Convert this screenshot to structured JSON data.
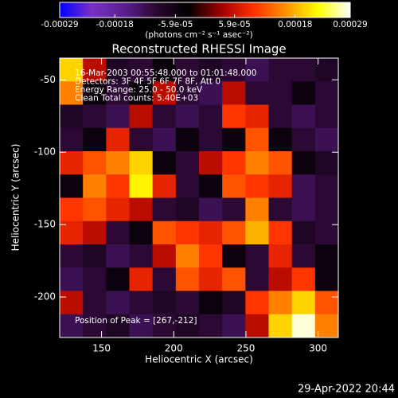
{
  "chart_data": {
    "type": "heatmap",
    "title": "Reconstructed RHESSI Image",
    "x_label": "Heliocentric X (arcsec)",
    "y_label": "Heliocentric Y (arcsec)",
    "xlim": [
      121,
      314
    ],
    "ylim": [
      -228,
      -35
    ],
    "xticks": [
      150,
      200,
      250,
      300
    ],
    "yticks": [
      -50,
      -100,
      -150,
      -200
    ],
    "annotations": [
      "16-Mar-2003 00:55:48.000 to 01:01:48.000",
      "Detectors: 3F 4F 5F 6F 7F 8F, Att 0",
      "Energy Range: 25.0 - 50.0 keV",
      "Clean     Total counts: 5.40E+03"
    ],
    "peak_label": "Position of Peak = [267,-212]",
    "timestamp": "29-Apr-2022 20:44",
    "colorbar": {
      "label": "(photons cm⁻² s⁻¹ asec⁻²)",
      "lim": [
        -0.00029,
        0.00029
      ],
      "ticks": [
        -0.00029,
        -0.00018,
        {
          "value": -5.9e-05,
          "label": "-5.9e-05"
        },
        {
          "value": 5.9e-05,
          "label": "5.9e-05"
        },
        0.00018,
        0.00029
      ],
      "colormap": [
        "#0000ff",
        "#7a30c8",
        "#5a2090",
        "#2a0830",
        "#000000",
        "#a00000",
        "#ff3000",
        "#ff9000",
        "#ffff00",
        "#ffffff"
      ]
    },
    "values": [
      [
        0.0002,
        5e-05,
        -8e-05,
        -0.0001,
        -5e-05,
        -0.0001,
        -8e-05,
        -0.0001,
        -0.00012,
        -0.0001,
        -0.0001,
        -8e-05
      ],
      [
        0.00015,
        -5e-05,
        -0.0001,
        -5e-05,
        5e-05,
        -0.0001,
        -0.00012,
        5e-05,
        -0.0001,
        -0.0001,
        -5e-05,
        -0.0001
      ],
      [
        -8e-05,
        -0.0001,
        -0.00012,
        5e-05,
        -0.0001,
        -0.00012,
        -0.0001,
        0.0001,
        8e-05,
        -0.0001,
        -0.00012,
        -0.0001
      ],
      [
        -0.0001,
        -5e-05,
        8e-05,
        -0.0001,
        -0.00012,
        -5e-05,
        -0.0001,
        -5e-05,
        0.00012,
        -5e-05,
        -0.0001,
        -0.00012
      ],
      [
        8e-05,
        0.00012,
        0.00015,
        0.0002,
        -5e-05,
        -0.0001,
        5e-05,
        0.0001,
        0.00015,
        0.00012,
        -5e-05,
        -8e-05
      ],
      [
        -5e-05,
        0.00015,
        0.0001,
        0.00022,
        8e-05,
        -0.0001,
        -5e-05,
        0.00012,
        0.0001,
        8e-05,
        -0.00012,
        -0.0001
      ],
      [
        0.0001,
        0.00012,
        8e-05,
        5e-05,
        -0.0001,
        -8e-05,
        -0.00012,
        -0.0001,
        0.00015,
        -0.0001,
        -0.00012,
        -0.0001
      ],
      [
        8e-05,
        5e-05,
        -0.0001,
        -5e-05,
        0.00012,
        0.0001,
        8e-05,
        0.00012,
        0.00018,
        0.0001,
        -8e-05,
        -0.0001
      ],
      [
        -0.0001,
        -8e-05,
        -0.00012,
        -0.0001,
        5e-05,
        0.00015,
        0.0001,
        -5e-05,
        -0.0001,
        8e-05,
        -0.0001,
        -5e-05
      ],
      [
        -0.00012,
        -0.0001,
        -5e-05,
        8e-05,
        -0.0001,
        0.00012,
        8e-05,
        0.00012,
        -0.0001,
        5e-05,
        0.0001,
        -5e-05
      ],
      [
        5e-05,
        -0.0001,
        -0.00012,
        -0.0001,
        -8e-05,
        -0.0001,
        -5e-05,
        -8e-05,
        0.0001,
        0.00015,
        0.0002,
        0.00012
      ],
      [
        -0.00012,
        -0.0001,
        -8e-05,
        -0.00012,
        -0.0001,
        -8e-05,
        -0.0001,
        -0.00012,
        5e-05,
        0.0002,
        0.00028,
        0.00015
      ]
    ]
  }
}
